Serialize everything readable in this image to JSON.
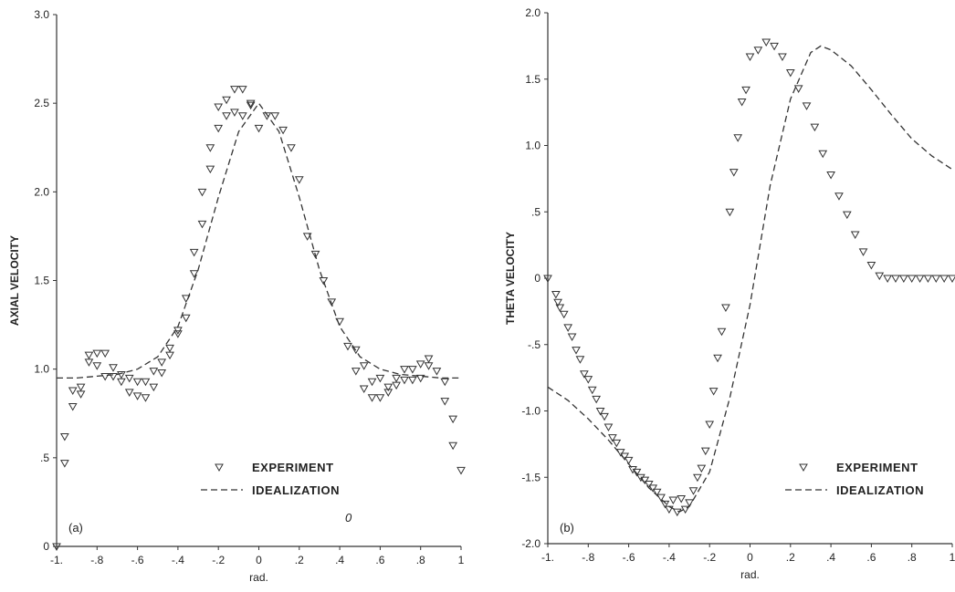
{
  "chart_data": [
    {
      "type": "scatter",
      "panel_label": "(a)",
      "xlabel": "rad.",
      "ylabel": "AXIAL VELOCITY",
      "xlim": [
        -1,
        1
      ],
      "ylim": [
        0,
        3
      ],
      "xticks": [
        -1,
        -0.8,
        -0.6,
        -0.4,
        -0.2,
        0,
        0.2,
        0.4,
        0.6,
        0.8,
        1
      ],
      "xtick_labels": [
        "-1.",
        "-.8",
        "-.6",
        "-.4",
        "-.2",
        "0",
        ".2",
        ".4",
        ".6",
        ".8",
        "1"
      ],
      "yticks": [
        0,
        0.5,
        1.0,
        1.5,
        2.0,
        2.5,
        3.0
      ],
      "ytick_labels": [
        "0",
        ".5",
        "1.0",
        "1.5",
        "2.0",
        "2.5",
        "3.0"
      ],
      "legend_position": "bottom-center",
      "annotation": "0",
      "series": [
        {
          "name": "EXPERIMENT",
          "style": "triangle-marker",
          "x": [
            -1.0,
            -0.96,
            -0.96,
            -0.92,
            -0.92,
            -0.88,
            -0.88,
            -0.84,
            -0.84,
            -0.8,
            -0.8,
            -0.76,
            -0.76,
            -0.72,
            -0.72,
            -0.68,
            -0.68,
            -0.64,
            -0.64,
            -0.6,
            -0.6,
            -0.56,
            -0.56,
            -0.52,
            -0.52,
            -0.48,
            -0.48,
            -0.44,
            -0.44,
            -0.4,
            -0.4,
            -0.36,
            -0.36,
            -0.32,
            -0.32,
            -0.28,
            -0.28,
            -0.24,
            -0.24,
            -0.2,
            -0.2,
            -0.16,
            -0.16,
            -0.12,
            -0.12,
            -0.08,
            -0.08,
            -0.04,
            -0.04,
            0.0,
            0.04,
            0.08,
            0.12,
            0.16,
            0.2,
            0.24,
            0.28,
            0.32,
            0.36,
            0.4,
            0.44,
            0.48,
            0.48,
            0.52,
            0.52,
            0.56,
            0.56,
            0.6,
            0.6,
            0.64,
            0.64,
            0.68,
            0.68,
            0.72,
            0.72,
            0.76,
            0.76,
            0.8,
            0.8,
            0.84,
            0.84,
            0.88,
            0.92,
            0.92,
            0.96,
            0.96,
            1.0
          ],
          "y": [
            0.0,
            0.47,
            0.62,
            0.79,
            0.88,
            0.86,
            0.9,
            1.04,
            1.08,
            1.02,
            1.09,
            0.96,
            1.09,
            0.96,
            1.01,
            0.93,
            0.97,
            0.87,
            0.95,
            0.85,
            0.93,
            0.84,
            0.93,
            0.9,
            0.99,
            0.98,
            1.04,
            1.08,
            1.12,
            1.2,
            1.22,
            1.29,
            1.4,
            1.54,
            1.66,
            1.82,
            2.0,
            2.13,
            2.25,
            2.36,
            2.48,
            2.43,
            2.52,
            2.45,
            2.58,
            2.43,
            2.58,
            2.49,
            2.5,
            2.36,
            2.43,
            2.43,
            2.35,
            2.25,
            2.07,
            1.75,
            1.65,
            1.5,
            1.38,
            1.27,
            1.13,
            1.11,
            0.99,
            1.02,
            0.89,
            0.93,
            0.84,
            0.95,
            0.84,
            0.9,
            0.87,
            0.95,
            0.91,
            1.0,
            0.94,
            1.0,
            0.94,
            1.03,
            0.95,
            1.06,
            1.02,
            0.99,
            0.93,
            0.82,
            0.72,
            0.57,
            0.43
          ]
        },
        {
          "name": "IDEALIZATION",
          "style": "dashed",
          "x": [
            -1.0,
            -0.9,
            -0.8,
            -0.7,
            -0.6,
            -0.5,
            -0.4,
            -0.3,
            -0.2,
            -0.1,
            0.0,
            0.1,
            0.2,
            0.3,
            0.4,
            0.5,
            0.6,
            0.7,
            0.8,
            0.9,
            1.0
          ],
          "y": [
            0.95,
            0.95,
            0.96,
            0.97,
            1.0,
            1.07,
            1.24,
            1.56,
            1.97,
            2.34,
            2.5,
            2.34,
            1.97,
            1.56,
            1.24,
            1.07,
            1.0,
            0.97,
            0.96,
            0.95,
            0.95
          ]
        }
      ]
    },
    {
      "type": "scatter",
      "panel_label": "(b)",
      "xlabel": "rad.",
      "ylabel": "THETA VELOCITY",
      "xlim": [
        -1,
        1
      ],
      "ylim": [
        -2,
        2
      ],
      "xticks": [
        -1,
        -0.8,
        -0.6,
        -0.4,
        -0.2,
        0,
        0.2,
        0.4,
        0.6,
        0.8,
        1
      ],
      "xtick_labels": [
        "-1.",
        "-.8",
        "-.6",
        "-.4",
        "-.2",
        "0",
        ".2",
        ".4",
        ".6",
        ".8",
        "1"
      ],
      "yticks": [
        -2,
        -1.5,
        -1,
        -0.5,
        0,
        0.5,
        1,
        1.5,
        2
      ],
      "ytick_labels": [
        "-2.0",
        "-1.5",
        "-1.0",
        "-.5",
        "0",
        ".5",
        "1.0",
        "1.5",
        "2.0"
      ],
      "legend_position": "bottom-right",
      "series": [
        {
          "name": "EXPERIMENT",
          "style": "triangle-marker",
          "x": [
            -1.0,
            -0.96,
            -0.95,
            -0.94,
            -0.92,
            -0.9,
            -0.88,
            -0.86,
            -0.84,
            -0.82,
            -0.8,
            -0.78,
            -0.76,
            -0.74,
            -0.72,
            -0.7,
            -0.68,
            -0.66,
            -0.64,
            -0.62,
            -0.6,
            -0.58,
            -0.56,
            -0.54,
            -0.52,
            -0.5,
            -0.48,
            -0.46,
            -0.44,
            -0.42,
            -0.4,
            -0.38,
            -0.36,
            -0.34,
            -0.32,
            -0.3,
            -0.28,
            -0.26,
            -0.24,
            -0.22,
            -0.2,
            -0.18,
            -0.16,
            -0.14,
            -0.12,
            -0.1,
            -0.08,
            -0.06,
            -0.04,
            -0.02,
            0.0,
            0.04,
            0.08,
            0.12,
            0.16,
            0.2,
            0.24,
            0.28,
            0.32,
            0.36,
            0.4,
            0.44,
            0.48,
            0.52,
            0.56,
            0.6,
            0.64,
            0.68,
            0.72,
            0.76,
            0.8,
            0.84,
            0.88,
            0.92,
            0.96,
            1.0
          ],
          "y": [
            0.0,
            -0.12,
            -0.18,
            -0.22,
            -0.27,
            -0.37,
            -0.44,
            -0.54,
            -0.61,
            -0.72,
            -0.76,
            -0.84,
            -0.91,
            -1.0,
            -1.04,
            -1.12,
            -1.2,
            -1.24,
            -1.31,
            -1.34,
            -1.37,
            -1.44,
            -1.46,
            -1.5,
            -1.52,
            -1.55,
            -1.58,
            -1.61,
            -1.65,
            -1.7,
            -1.74,
            -1.67,
            -1.76,
            -1.66,
            -1.74,
            -1.69,
            -1.6,
            -1.5,
            -1.43,
            -1.3,
            -1.1,
            -0.85,
            -0.6,
            -0.4,
            -0.22,
            0.5,
            0.8,
            1.06,
            1.33,
            1.42,
            1.67,
            1.72,
            1.78,
            1.75,
            1.67,
            1.55,
            1.43,
            1.3,
            1.14,
            0.94,
            0.78,
            0.62,
            0.48,
            0.33,
            0.2,
            0.1,
            0.02,
            0.0,
            0.0,
            0.0,
            0.0,
            0.0,
            0.0,
            0.0,
            0.0,
            0.0
          ]
        },
        {
          "name": "IDEALIZATION",
          "style": "dashed",
          "x": [
            -1.0,
            -0.9,
            -0.8,
            -0.7,
            -0.6,
            -0.5,
            -0.4,
            -0.35,
            -0.3,
            -0.2,
            -0.1,
            0.0,
            0.1,
            0.2,
            0.3,
            0.35,
            0.4,
            0.5,
            0.6,
            0.7,
            0.8,
            0.9,
            1.0
          ],
          "y": [
            -0.82,
            -0.92,
            -1.06,
            -1.22,
            -1.4,
            -1.58,
            -1.72,
            -1.76,
            -1.72,
            -1.46,
            -0.9,
            -0.2,
            0.7,
            1.35,
            1.7,
            1.75,
            1.72,
            1.6,
            1.42,
            1.23,
            1.05,
            0.92,
            0.82
          ]
        }
      ]
    }
  ]
}
